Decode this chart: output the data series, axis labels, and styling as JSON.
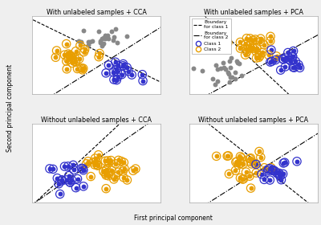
{
  "title_tl": "With unlabeled samples + CCA",
  "title_tr": "With unlabeled samples + PCA",
  "title_bl": "Without unlabeled samples + CCA",
  "title_br": "Without unlabeled samples + PCA",
  "xlabel": "First principal component",
  "ylabel": "Second principal component",
  "class1_color": "#3333cc",
  "class2_color": "#e89e00",
  "unlabeled_color": "#888888",
  "bg_color": "#efefef",
  "title_fontsize": 5.8,
  "legend_fontsize": 4.2,
  "axis_label_fontsize": 5.5,
  "marker_small": 18,
  "marker_large": 55,
  "lw_circle": 0.9,
  "lw_boundary": 0.8
}
